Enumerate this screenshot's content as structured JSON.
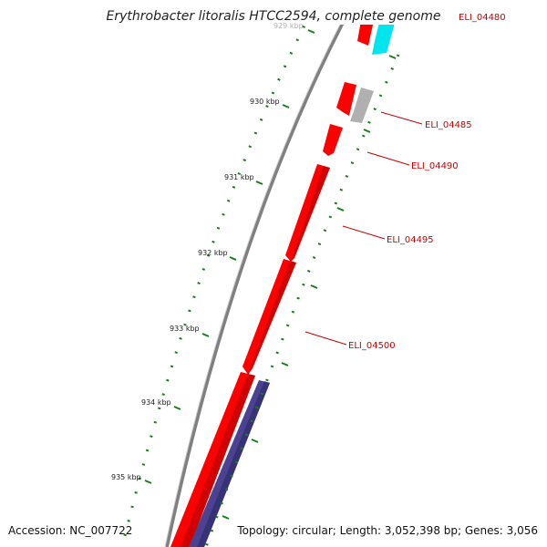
{
  "title": "Erythrobacter litoralis HTCC2594, complete genome",
  "footer": {
    "accession": "Accession: NC_007722",
    "summary": "Topology: circular; Length: 3,052,398 bp; Genes: 3,056"
  },
  "ticks": [
    "929 kbp",
    "930 kbp",
    "931 kbp",
    "932 kbp",
    "933 kbp",
    "934 kbp",
    "935 kbp"
  ],
  "gene_labels": [
    "ELI_04480",
    "ELI_04485",
    "ELI_04490",
    "ELI_04495",
    "ELI_04500"
  ],
  "colors": {
    "backbone": "#808080",
    "forward_gene": "#ff0000",
    "reverse_gene_cyan": "#00e5ee",
    "reverse_gene_gray": "#b0b0b0",
    "reverse_gene_purple": "#4b4392",
    "tick_mark": "#1a7f1a",
    "label": "#cc0000"
  }
}
